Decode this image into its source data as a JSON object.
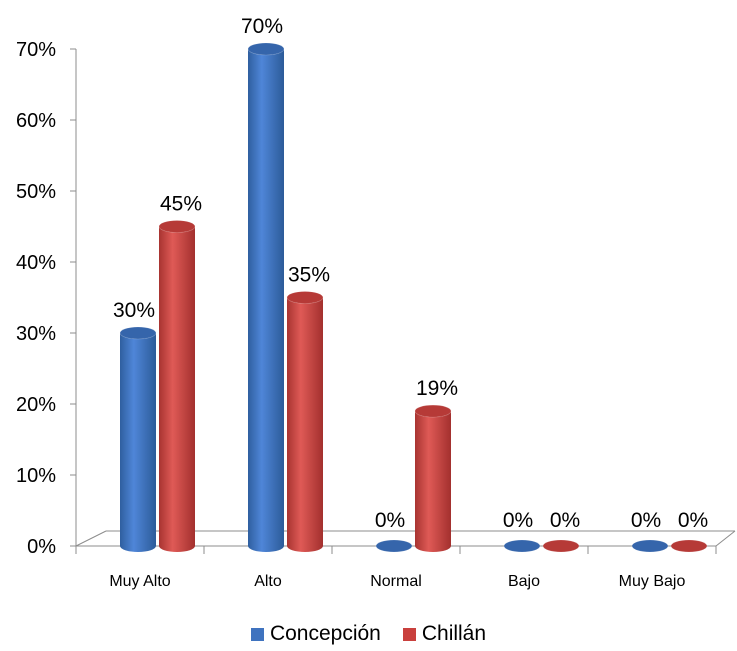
{
  "chart_data": {
    "type": "bar",
    "categories": [
      "Muy Alto",
      "Alto",
      "Normal",
      "Bajo",
      "Muy Bajo"
    ],
    "series": [
      {
        "name": "Concepción",
        "values": [
          30,
          70,
          0,
          0,
          0
        ],
        "labels": [
          "30%",
          "70%",
          "0%",
          "0%",
          "0%"
        ],
        "color": "#3f73bf"
      },
      {
        "name": "Chillán",
        "values": [
          45,
          35,
          19,
          0,
          0
        ],
        "labels": [
          "45%",
          "35%",
          "19%",
          "0%",
          "0%"
        ],
        "color": "#c9403d"
      }
    ],
    "ylim": [
      0,
      70
    ],
    "y_ticks": [
      "0%",
      "10%",
      "20%",
      "30%",
      "40%",
      "50%",
      "60%",
      "70%"
    ],
    "legend_position": "bottom",
    "grid": false,
    "style": "3d-cylinder"
  }
}
